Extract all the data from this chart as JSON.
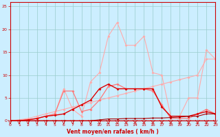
{
  "x": [
    0,
    1,
    2,
    3,
    4,
    5,
    6,
    7,
    8,
    9,
    10,
    11,
    12,
    13,
    14,
    15,
    16,
    17,
    18,
    19,
    20,
    21,
    22,
    23
  ],
  "line_tall": [
    0.0,
    0.1,
    0.3,
    0.5,
    1.0,
    1.5,
    7.0,
    2.5,
    1.0,
    8.5,
    10.5,
    18.5,
    21.5,
    16.5,
    16.5,
    18.5,
    10.5,
    10.0,
    1.0,
    1.0,
    5.0,
    5.0,
    15.5,
    13.5
  ],
  "line_diag": [
    0.0,
    0.2,
    0.5,
    1.0,
    1.5,
    2.0,
    2.5,
    3.0,
    3.5,
    4.0,
    4.5,
    5.0,
    5.5,
    6.0,
    6.5,
    7.0,
    7.5,
    8.0,
    8.5,
    9.0,
    9.5,
    10.0,
    13.5,
    13.5
  ],
  "line_mid": [
    0.0,
    0.1,
    0.2,
    0.5,
    1.0,
    1.5,
    6.5,
    6.5,
    2.0,
    2.5,
    4.5,
    7.5,
    8.0,
    7.0,
    7.0,
    7.0,
    6.5,
    3.5,
    0.5,
    0.5,
    0.5,
    1.5,
    2.5,
    1.5
  ],
  "line_bot": [
    0.0,
    0.0,
    0.2,
    0.5,
    1.0,
    1.2,
    1.5,
    2.5,
    3.5,
    4.5,
    7.0,
    8.0,
    7.0,
    7.0,
    7.0,
    7.0,
    7.0,
    3.0,
    1.0,
    1.0,
    1.0,
    1.5,
    2.0,
    1.5
  ],
  "line_flat": [
    0.0,
    0.0,
    0.0,
    0.0,
    0.0,
    0.0,
    0.0,
    0.0,
    0.0,
    0.0,
    0.2,
    0.4,
    0.4,
    0.5,
    0.5,
    0.5,
    0.6,
    0.6,
    0.7,
    0.8,
    1.0,
    1.0,
    1.5,
    1.5
  ],
  "color_light": "#ffaaaa",
  "color_mid": "#ff7777",
  "color_dark": "#dd0000",
  "color_darkest": "#aa0000",
  "background_color": "#cceeff",
  "grid_color": "#99cccc",
  "xlabel": "Vent moyen/en rafales ( km/h )",
  "yticks": [
    0,
    5,
    10,
    15,
    20,
    25
  ],
  "xticks": [
    0,
    1,
    2,
    3,
    4,
    5,
    6,
    7,
    8,
    9,
    10,
    11,
    12,
    13,
    14,
    15,
    16,
    17,
    18,
    19,
    20,
    21,
    22,
    23
  ],
  "ylim": [
    0,
    26
  ],
  "xlim": [
    0,
    23
  ]
}
